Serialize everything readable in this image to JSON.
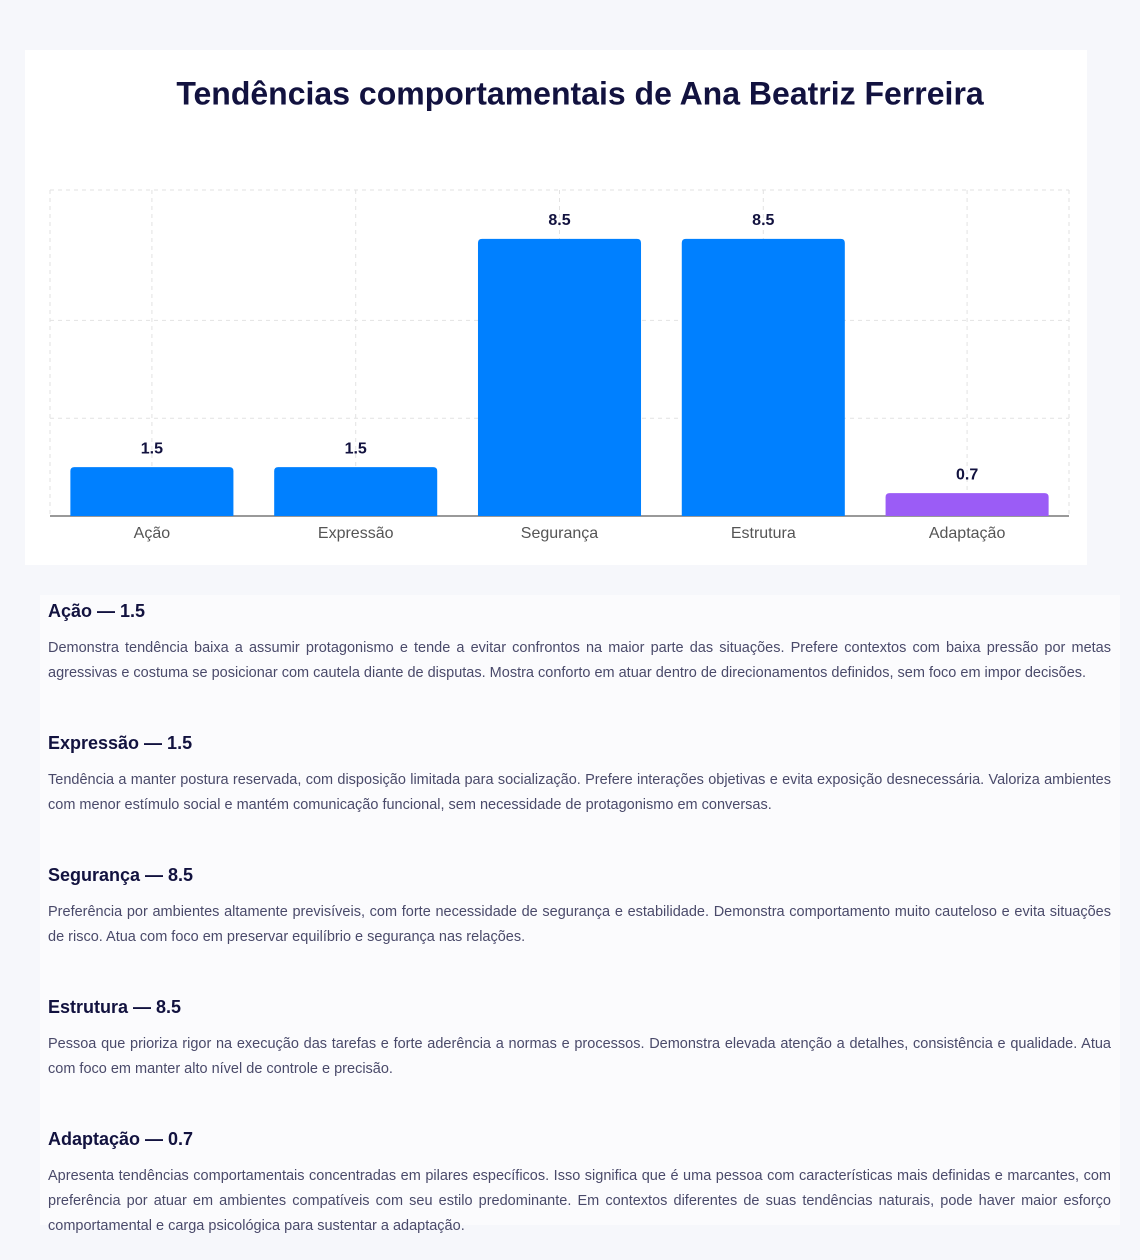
{
  "chart_data": {
    "type": "bar",
    "title": "Tendências comportamentais de Ana Beatriz Ferreira",
    "categories": [
      "Ação",
      "Expressão",
      "Segurança",
      "Estrutura",
      "Adaptação"
    ],
    "values": [
      1.5,
      1.5,
      8.5,
      8.5,
      0.7
    ],
    "colors": [
      "#0080ff",
      "#0080ff",
      "#0080ff",
      "#0080ff",
      "#9b5cf6"
    ],
    "ylim": [
      0,
      10
    ],
    "yticks": [
      0,
      3,
      6
    ],
    "grid": true
  },
  "sections": [
    {
      "title": "Ação — 1.5",
      "text": "Demonstra tendência baixa a assumir protagonismo e tende a evitar confrontos na maior parte das situações. Prefere contextos com baixa pressão por metas agressivas e costuma se posicionar com cautela diante de disputas. Mostra conforto em atuar dentro de direcionamentos definidos, sem foco em impor decisões."
    },
    {
      "title": "Expressão — 1.5",
      "text": "Tendência a manter postura reservada, com disposição limitada para socialização. Prefere interações objetivas e evita exposição desnecessária. Valoriza ambientes com menor estímulo social e mantém comunicação funcional, sem necessidade de protagonismo em conversas."
    },
    {
      "title": "Segurança — 8.5",
      "text": "Preferência por ambientes altamente previsíveis, com forte necessidade de segurança e estabilidade. Demonstra comportamento muito cauteloso e evita situações de risco. Atua com foco em preservar equilíbrio e segurança nas relações."
    },
    {
      "title": "Estrutura — 8.5",
      "text": "Pessoa que prioriza rigor na execução das tarefas e forte aderência a normas e processos. Demonstra elevada atenção a detalhes, consistência e qualidade. Atua com foco em manter alto nível de controle e precisão."
    },
    {
      "title": "Adaptação — 0.7",
      "text": "Apresenta tendências comportamentais concentradas em pilares específicos. Isso significa que é uma pessoa com características mais definidas e marcantes, com preferência por atuar em ambientes compatíveis com seu estilo predominante. Em contextos diferentes de suas tendências naturais, pode haver maior esforço comportamental e carga psicológica para sustentar a adaptação."
    }
  ]
}
